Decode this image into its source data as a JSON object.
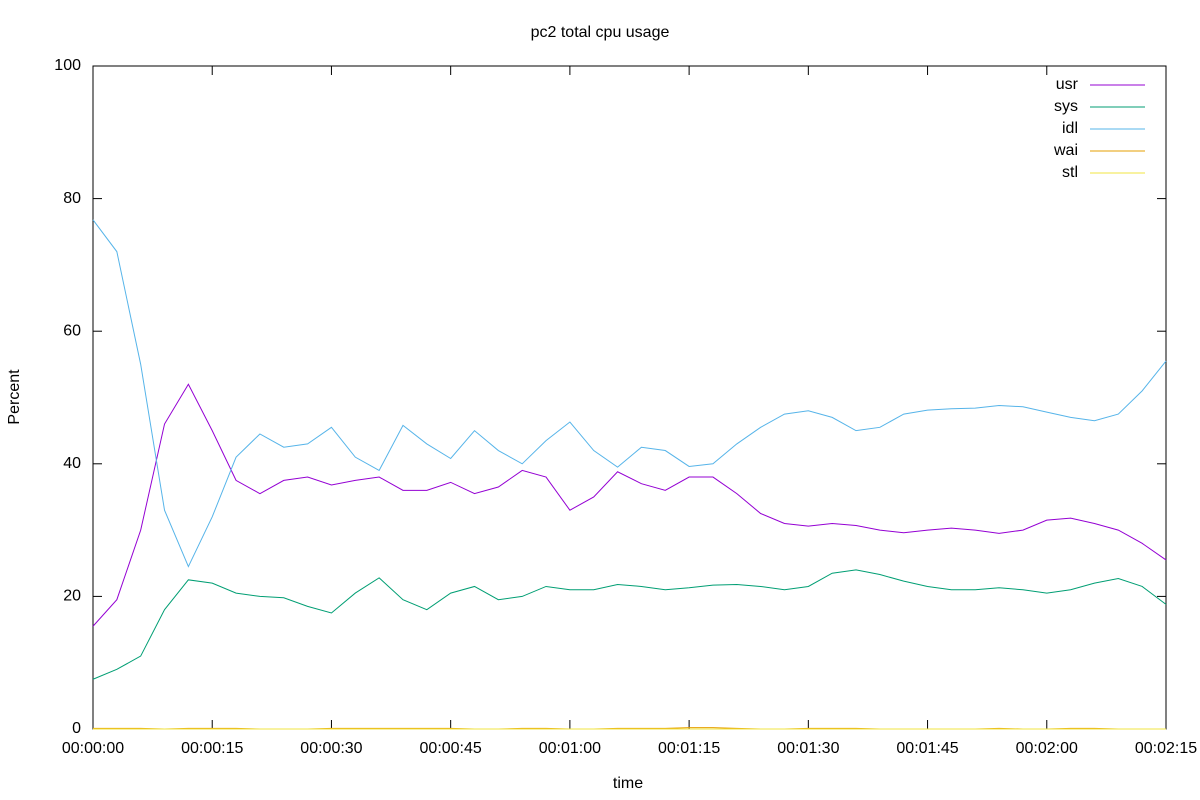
{
  "chart_data": {
    "type": "line",
    "title": "pc2 total cpu usage",
    "x_label": "time",
    "y_label": "Percent",
    "x": [
      0,
      3,
      6,
      9,
      12,
      15,
      18,
      21,
      24,
      27,
      30,
      33,
      36,
      39,
      42,
      45,
      48,
      51,
      54,
      57,
      60,
      63,
      66,
      69,
      72,
      75,
      78,
      81,
      84,
      87,
      90,
      93,
      96,
      99,
      102,
      105,
      108,
      111,
      114,
      117,
      120,
      123,
      126,
      129,
      132,
      135
    ],
    "series": [
      {
        "name": "usr",
        "color": "#9400d3",
        "values": [
          15.5,
          19.5,
          30,
          46,
          52,
          45,
          37.5,
          35.5,
          37.5,
          38,
          36.8,
          37.5,
          38,
          36,
          36,
          37.2,
          35.5,
          36.5,
          39,
          38,
          33,
          35,
          38.8,
          37,
          36,
          38,
          38,
          35.5,
          32.5,
          31,
          30.6,
          31,
          30.7,
          30,
          29.6,
          30,
          30.3,
          30,
          29.5,
          30,
          31.5,
          31.8,
          31,
          30,
          28,
          25.5
        ]
      },
      {
        "name": "sys",
        "color": "#009e73",
        "values": [
          7.5,
          9,
          11,
          18,
          22.5,
          22,
          20.5,
          20,
          19.8,
          18.5,
          17.5,
          20.5,
          22.8,
          19.5,
          18,
          20.5,
          21.5,
          19.5,
          20,
          21.5,
          21,
          21,
          21.8,
          21.5,
          21,
          21.3,
          21.7,
          21.8,
          21.5,
          21,
          21.5,
          23.5,
          24,
          23.3,
          22.3,
          21.5,
          21,
          21,
          21.3,
          21,
          20.5,
          21,
          22,
          22.7,
          21.5,
          18.8
        ]
      },
      {
        "name": "idl",
        "color": "#56b4e9",
        "values": [
          76.8,
          72,
          55,
          33,
          24.5,
          32,
          41,
          44.5,
          42.5,
          43,
          45.5,
          41,
          39,
          45.8,
          43,
          40.8,
          45,
          42,
          40,
          43.5,
          46.3,
          42,
          39.5,
          42.5,
          42,
          39.6,
          40,
          43,
          45.5,
          47.5,
          48,
          47,
          45,
          45.5,
          47.5,
          48.1,
          48.3,
          48.4,
          48.8,
          48.6,
          47.8,
          47,
          46.5,
          47.5,
          51,
          55.5
        ]
      },
      {
        "name": "wai",
        "color": "#e69f00",
        "values": [
          0.1,
          0.1,
          0.1,
          0,
          0.1,
          0.1,
          0.1,
          0,
          0,
          0,
          0.1,
          0.1,
          0.1,
          0.1,
          0.1,
          0.1,
          0,
          0,
          0.1,
          0.1,
          0,
          0,
          0.1,
          0.1,
          0.1,
          0.2,
          0.2,
          0.1,
          0,
          0,
          0.1,
          0.1,
          0.1,
          0,
          0,
          0,
          0,
          0,
          0.1,
          0,
          0,
          0.1,
          0.1,
          0,
          0,
          0
        ]
      },
      {
        "name": "stl",
        "color": "#f0e442",
        "values": [
          0,
          0,
          0,
          0,
          0,
          0,
          0,
          0,
          0,
          0,
          0,
          0,
          0,
          0,
          0,
          0,
          0,
          0,
          0,
          0,
          0,
          0,
          0,
          0,
          0,
          0,
          0,
          0,
          0,
          0,
          0,
          0,
          0,
          0,
          0,
          0,
          0,
          0,
          0,
          0,
          0,
          0,
          0,
          0,
          0,
          0
        ]
      }
    ],
    "xlim": [
      0,
      135
    ],
    "xticks": [
      {
        "value": 0,
        "label": "00:00:00"
      },
      {
        "value": 15,
        "label": "00:00:15"
      },
      {
        "value": 30,
        "label": "00:00:30"
      },
      {
        "value": 45,
        "label": "00:00:45"
      },
      {
        "value": 60,
        "label": "00:01:00"
      },
      {
        "value": 75,
        "label": "00:01:15"
      },
      {
        "value": 90,
        "label": "00:01:30"
      },
      {
        "value": 105,
        "label": "00:01:45"
      },
      {
        "value": 120,
        "label": "00:02:00"
      },
      {
        "value": 135,
        "label": "00:02:15"
      }
    ],
    "ylim": [
      0,
      100
    ],
    "yticks": [
      0,
      20,
      40,
      60,
      80,
      100
    ],
    "legend": "top-right"
  }
}
